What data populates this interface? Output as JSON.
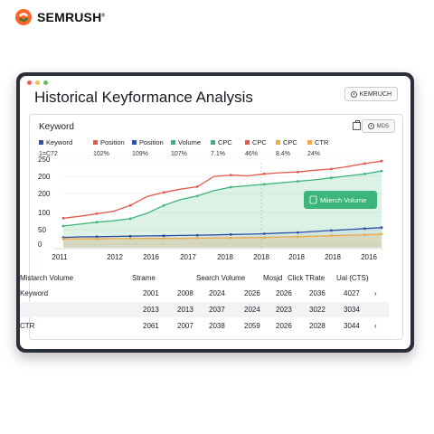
{
  "brand": {
    "name": "SEMRUSH",
    "mark": "®"
  },
  "window": {
    "title": "Historical Keyformance Analysis",
    "export_label": "KEMRUCH",
    "dots": [
      "#ec5f57",
      "#f5bd4f",
      "#5fc454"
    ]
  },
  "panel": {
    "title": "Keyword",
    "mds_label": "MDS"
  },
  "legend": [
    {
      "label": "Keyword",
      "color": "#2f4fa2"
    },
    {
      "label": "Position",
      "color": "#e35a4b"
    },
    {
      "label": "Position",
      "color": "#2f4fa2"
    },
    {
      "label": "Volume",
      "color": "#3bb57a"
    },
    {
      "label": "CPC",
      "color": "#3bb57a"
    },
    {
      "label": "CPC",
      "color": "#e35a4b"
    },
    {
      "label": "CPC",
      "color": "#f0a848"
    },
    {
      "label": "CTR",
      "color": "#f0a848"
    }
  ],
  "metrics": [
    {
      "label": "1=C72",
      "color": "#bbbbbb"
    },
    {
      "label": "102%"
    },
    {
      "label": "109%"
    },
    {
      "label": "107%"
    },
    {
      "label": "7.1%"
    },
    {
      "label": "46%"
    },
    {
      "label": "8.4%"
    },
    {
      "label": "24%"
    }
  ],
  "chart_data": {
    "type": "area",
    "x_ticks": [
      "2011",
      "2012",
      "2016",
      "2017",
      "2018",
      "2018",
      "2018",
      "2018",
      "2016"
    ],
    "y_ticks": [
      "0",
      "50",
      "100",
      "200",
      "200",
      "250"
    ],
    "series": [
      {
        "color": "#e35a4b",
        "values": [
          120,
          128,
          138,
          148,
          172,
          208,
          225,
          238,
          248,
          290,
          295,
          292,
          300,
          305,
          308,
          315,
          320,
          330,
          342,
          352
        ]
      },
      {
        "color": "#3bb57a",
        "values": [
          88,
          96,
          104,
          110,
          118,
          140,
          172,
          196,
          210,
          232,
          246,
          252,
          258,
          264,
          270,
          276,
          284,
          292,
          300,
          312
        ]
      },
      {
        "color": "#2f4fa2",
        "values": [
          42,
          44,
          45,
          46,
          47,
          48,
          49,
          50,
          51,
          52,
          54,
          55,
          57,
          60,
          62,
          66,
          70,
          74,
          78,
          82
        ]
      },
      {
        "color": "#f0a848",
        "values": [
          36,
          36,
          36,
          37,
          37,
          38,
          38,
          38,
          39,
          40,
          40,
          41,
          42,
          44,
          45,
          47,
          49,
          51,
          53,
          56
        ]
      }
    ],
    "tooltip": "Miierch Volume"
  },
  "table": {
    "headers": [
      "Mistarch Volume",
      "Strame",
      "Search Volume",
      "Mosjd",
      "Click TRate",
      "Ual (CTS)"
    ],
    "rows": [
      {
        "label": "Keyword",
        "cells": [
          "2001",
          "2008",
          "2024",
          "2026",
          "2026",
          "2036",
          "4027",
          "›"
        ]
      },
      {
        "label": "",
        "cells": [
          "2013",
          "2013",
          "2037",
          "2024",
          "2023",
          "3022",
          "3034",
          ""
        ]
      },
      {
        "label": "CTR",
        "cells": [
          "2061",
          "2007",
          "2038",
          "2059",
          "2026",
          "2028",
          "3044",
          "‹"
        ]
      }
    ]
  }
}
